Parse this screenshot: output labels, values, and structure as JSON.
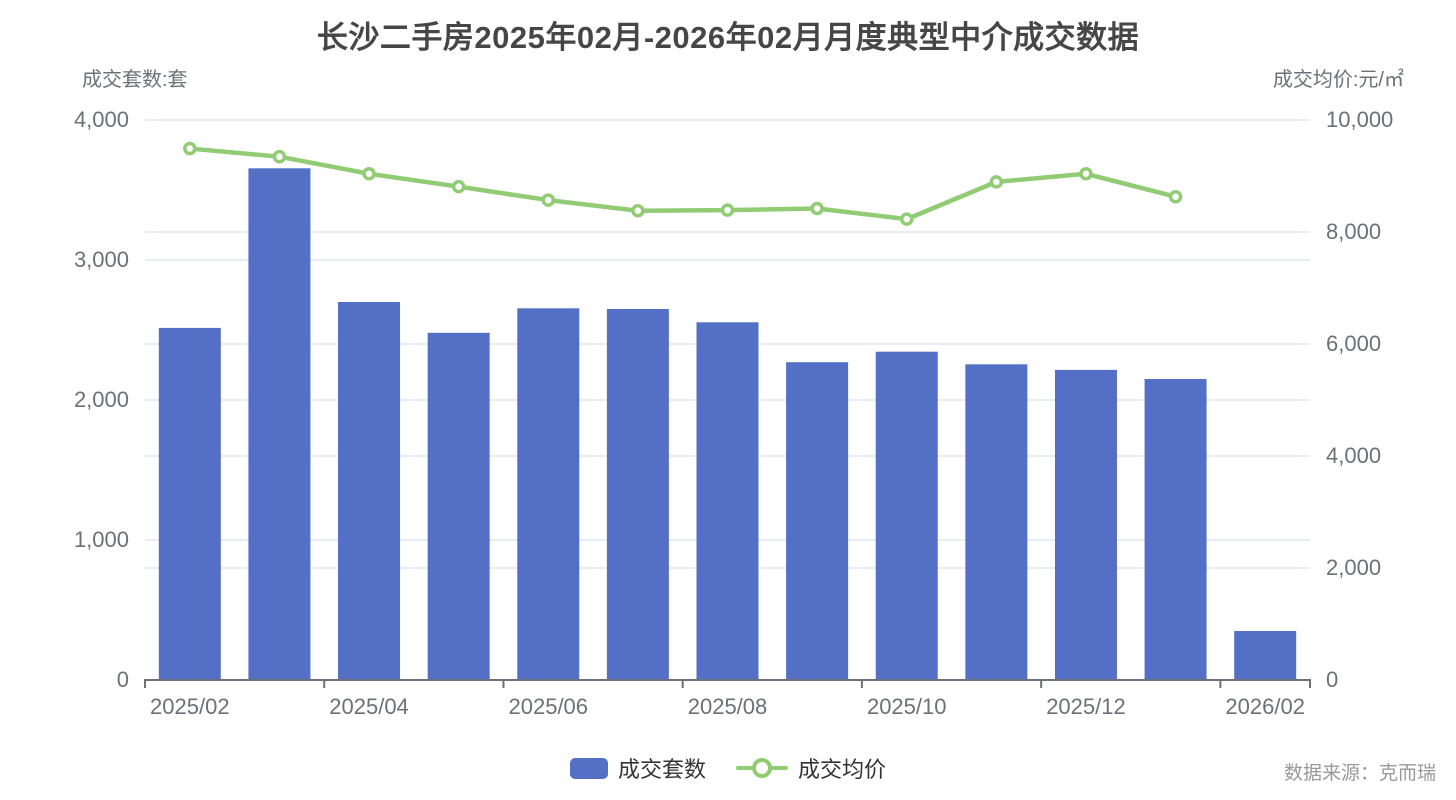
{
  "title": "长沙二手房2025年02月-2026年02月月度典型中介成交数据",
  "left_axis_name": "成交套数:套",
  "right_axis_name": "成交均价:元/㎡",
  "source": "数据来源：克而瑞",
  "legend": [
    {
      "label": "成交套数",
      "marker": "bar-swatch"
    },
    {
      "label": "成交均价",
      "marker": "line-ring"
    }
  ],
  "colors": {
    "bar": "#5470C6",
    "line": "#91CC75",
    "grid": "#E0E6F1",
    "axis_line": "#6E7079",
    "axis_text": "#6E7079",
    "title_text": "#464646",
    "source_text": "#999999"
  },
  "chart_data": {
    "type": "bar",
    "subtype": "bar-line-combo",
    "title": "长沙二手房2025年02月-2026年02月月度典型中介成交数据",
    "categories": [
      "2025/02",
      "2025/03",
      "2025/04",
      "2025/05",
      "2025/06",
      "2025/07",
      "2025/08",
      "2025/09",
      "2025/10",
      "2025/11",
      "2025/12",
      "2026/01",
      "2026/02"
    ],
    "x_tick_labels": [
      "2025/02",
      "2025/04",
      "2025/06",
      "2025/08",
      "2025/10",
      "2025/12",
      "2026/02"
    ],
    "series": [
      {
        "name": "成交套数",
        "type": "bar",
        "axis": "left",
        "values": [
          2515,
          3655,
          2700,
          2480,
          2655,
          2650,
          2555,
          2270,
          2345,
          2255,
          2215,
          2150,
          350
        ]
      },
      {
        "name": "成交均价",
        "type": "line",
        "axis": "right",
        "values": [
          9490,
          9345,
          9040,
          8810,
          8570,
          8380,
          8390,
          8420,
          8230,
          8895,
          9040,
          8630,
          null
        ]
      }
    ],
    "left_axis": {
      "name": "成交套数:套",
      "min": 0,
      "max": 4000,
      "ticks": [
        0,
        1000,
        2000,
        3000,
        4000
      ]
    },
    "right_axis": {
      "name": "成交均价:元/㎡",
      "min": 0,
      "max": 10000,
      "ticks": [
        0,
        2000,
        4000,
        6000,
        8000,
        10000
      ]
    },
    "grid": true,
    "legend_position": "bottom"
  }
}
